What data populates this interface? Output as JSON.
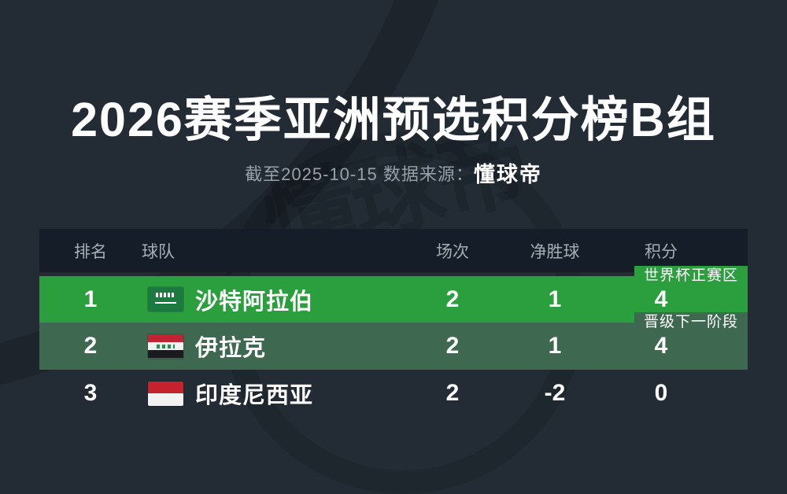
{
  "page": {
    "title": "2026赛季亚洲预选积分榜B组",
    "subtitle_prefix": "截至2025-10-15 数据来源：",
    "source_name": "懂球帝",
    "watermark_text": "懂球帝"
  },
  "colors": {
    "page_bg": "#232c35",
    "header_bg": "#151e28",
    "header_text": "#a6aeb5",
    "row1_bg": "#2b9e3e",
    "row2_bg": "#3e6950",
    "text": "#ffffff"
  },
  "table": {
    "columns": [
      {
        "key": "rank",
        "label": "排名"
      },
      {
        "key": "team",
        "label": "球队"
      },
      {
        "key": "played",
        "label": "场次"
      },
      {
        "key": "gd",
        "label": "净胜球"
      },
      {
        "key": "points",
        "label": "积分"
      }
    ],
    "rows": [
      {
        "rank": "1",
        "team": "沙特阿拉伯",
        "flag": "saudi-arabia-flag",
        "played": "2",
        "gd": "1",
        "points": "4",
        "badge": "世界杯正赛区",
        "zone": "qualified"
      },
      {
        "rank": "2",
        "team": "伊拉克",
        "flag": "iraq-flag",
        "played": "2",
        "gd": "1",
        "points": "4",
        "badge": "晋级下一阶段",
        "zone": "playoff"
      },
      {
        "rank": "3",
        "team": "印度尼西亚",
        "flag": "indonesia-flag",
        "played": "2",
        "gd": "-2",
        "points": "0",
        "badge": "",
        "zone": "none"
      }
    ]
  }
}
